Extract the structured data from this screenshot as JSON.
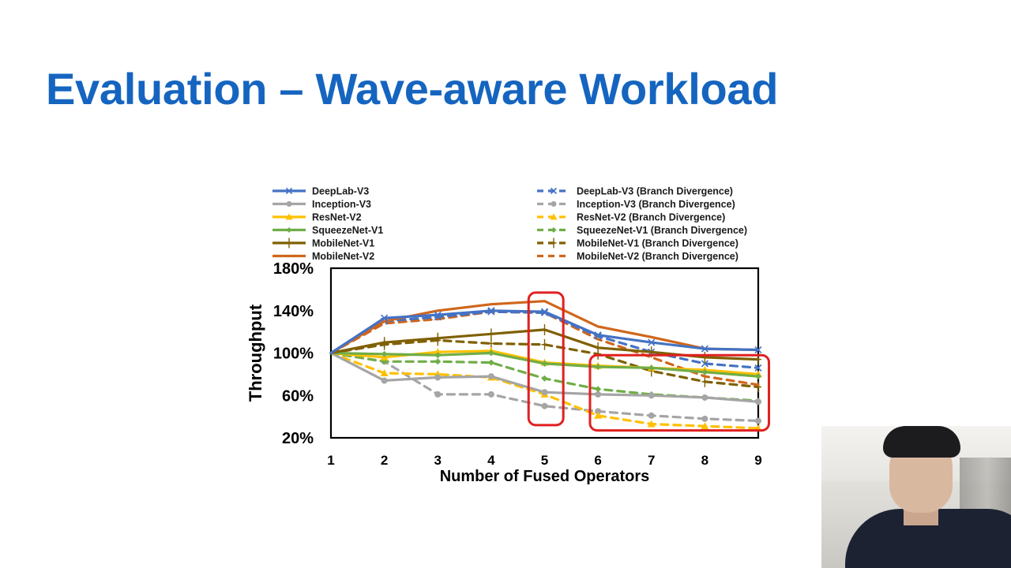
{
  "slide": {
    "title": "Evaluation – Wave-aware Workload"
  },
  "colors": {
    "title": "#1565c0",
    "highlight_box": "#e02020"
  },
  "chart_data": {
    "type": "line",
    "xlabel": "Number of Fused Operators",
    "ylabel": "Throughput",
    "x": [
      1,
      2,
      3,
      4,
      5,
      6,
      7,
      8,
      9
    ],
    "ylim": [
      20,
      180
    ],
    "yticks": [
      "180%",
      "140%",
      "100%",
      "60%",
      "20%"
    ],
    "ytick_values": [
      180,
      140,
      100,
      60,
      20
    ],
    "legend_position": "top",
    "series": [
      {
        "name": "DeepLab-V3",
        "style": "solid",
        "marker": "x",
        "color": "#4472c4",
        "values": [
          100,
          133,
          136,
          140,
          139,
          117,
          110,
          104,
          103
        ]
      },
      {
        "name": "Inception-V3",
        "style": "solid",
        "marker": "circle",
        "color": "#a5a5a5",
        "values": [
          100,
          74,
          77,
          78,
          63,
          61,
          60,
          58,
          54
        ]
      },
      {
        "name": "ResNet-V2",
        "style": "solid",
        "marker": "triangle",
        "color": "#ffc000",
        "values": [
          100,
          96,
          101,
          102,
          91,
          88,
          86,
          84,
          80
        ]
      },
      {
        "name": "SqueezeNet-V1",
        "style": "solid",
        "marker": "diamond",
        "color": "#70ad47",
        "values": [
          100,
          99,
          98,
          100,
          90,
          87,
          86,
          82,
          78
        ]
      },
      {
        "name": "MobileNet-V1",
        "style": "solid",
        "marker": "plus",
        "color": "#7f6000",
        "values": [
          100,
          110,
          114,
          118,
          122,
          105,
          101,
          96,
          94
        ]
      },
      {
        "name": "MobileNet-V2",
        "style": "solid",
        "marker": "none",
        "color": "#d0661c",
        "values": [
          100,
          130,
          140,
          146,
          149,
          125,
          115,
          104,
          103
        ]
      },
      {
        "name": "DeepLab-V3 (Branch Divergence)",
        "style": "dashed",
        "marker": "x",
        "color": "#4472c4",
        "values": [
          100,
          130,
          134,
          139,
          138,
          116,
          101,
          90,
          86
        ]
      },
      {
        "name": "Inception-V3 (Branch Divergence)",
        "style": "dashed",
        "marker": "circle",
        "color": "#a5a5a5",
        "values": [
          100,
          92,
          61,
          61,
          50,
          45,
          41,
          38,
          36
        ]
      },
      {
        "name": "ResNet-V2 (Branch Divergence)",
        "style": "dashed",
        "marker": "triangle",
        "color": "#ffc000",
        "values": [
          100,
          81,
          80,
          77,
          61,
          41,
          33,
          31,
          29
        ]
      },
      {
        "name": "SqueezeNet-V1 (Branch Divergence)",
        "style": "dashed",
        "marker": "diamond",
        "color": "#70ad47",
        "values": [
          100,
          92,
          92,
          91,
          76,
          66,
          61,
          58,
          55
        ]
      },
      {
        "name": "MobileNet-V1 (Branch Divergence)",
        "style": "dashed",
        "marker": "plus",
        "color": "#7f6000",
        "values": [
          100,
          108,
          112,
          109,
          108,
          99,
          83,
          73,
          68
        ]
      },
      {
        "name": "MobileNet-V2 (Branch Divergence)",
        "style": "dashed",
        "marker": "none",
        "color": "#d0661c",
        "values": [
          100,
          128,
          132,
          139,
          138,
          113,
          96,
          78,
          70
        ]
      }
    ],
    "highlight_boxes": [
      {
        "x_range": [
          4.7,
          5.35
        ],
        "y_range": [
          32,
          157
        ]
      },
      {
        "x_range": [
          5.85,
          9.2
        ],
        "y_range": [
          27,
          98
        ]
      }
    ]
  }
}
